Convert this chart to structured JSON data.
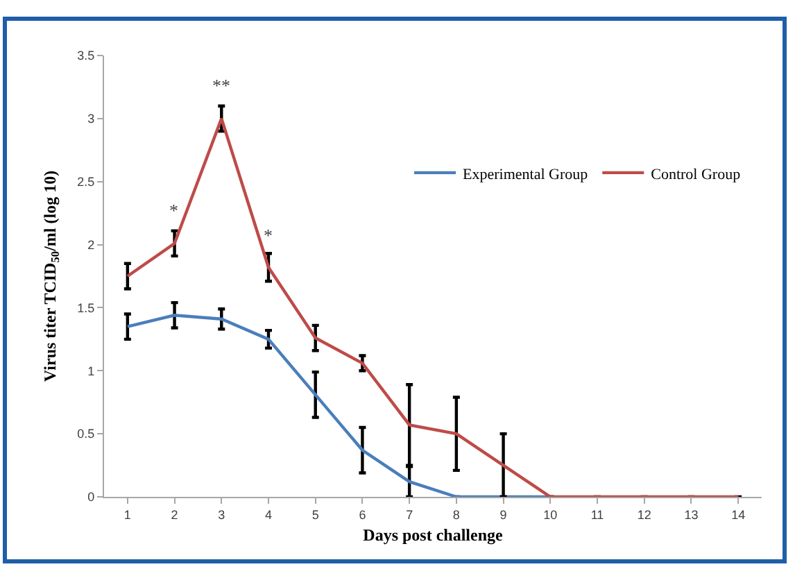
{
  "chart_data": {
    "type": "line",
    "xlabel": "Days post challenge",
    "ylabel": "Virus titer TCID$_{50}$/ml (log 10)",
    "x": [
      1,
      2,
      3,
      4,
      5,
      6,
      7,
      8,
      9,
      10,
      11,
      12,
      13,
      14
    ],
    "xlim": [
      0.5,
      14.5
    ],
    "xticks": [
      1,
      2,
      3,
      4,
      5,
      6,
      7,
      8,
      9,
      10,
      11,
      12,
      13,
      14
    ],
    "ylim": [
      0,
      3.5
    ],
    "yticks": [
      0,
      0.5,
      1,
      1.5,
      2,
      2.5,
      3,
      3.5
    ],
    "series": [
      {
        "name": "Experimental Group",
        "color": "#4a7ebb",
        "values": [
          1.35,
          1.44,
          1.41,
          1.25,
          0.81,
          0.37,
          0.12,
          0,
          0,
          0,
          null,
          null,
          null,
          null
        ],
        "errors": [
          0.1,
          0.1,
          0.08,
          0.07,
          0.18,
          0.18,
          0.12,
          null,
          null,
          null,
          null,
          null,
          null,
          null
        ]
      },
      {
        "name": "Control Group",
        "color": "#be4b48",
        "values": [
          1.75,
          2.01,
          3.0,
          1.82,
          1.26,
          1.06,
          0.57,
          0.5,
          0.25,
          0,
          0,
          0,
          0,
          0
        ],
        "errors": [
          0.1,
          0.1,
          0.1,
          0.11,
          0.1,
          0.06,
          0.32,
          0.29,
          0.25,
          null,
          null,
          null,
          null,
          null
        ]
      }
    ],
    "annotations": [
      {
        "text": "*",
        "x": 2,
        "y": 2.01
      },
      {
        "text": "**",
        "x": 3,
        "y": 3.0
      },
      {
        "text": "*",
        "x": 4,
        "y": 1.82
      }
    ],
    "grid": false,
    "legend": "top right",
    "marker": "none",
    "line_style": "solid"
  }
}
